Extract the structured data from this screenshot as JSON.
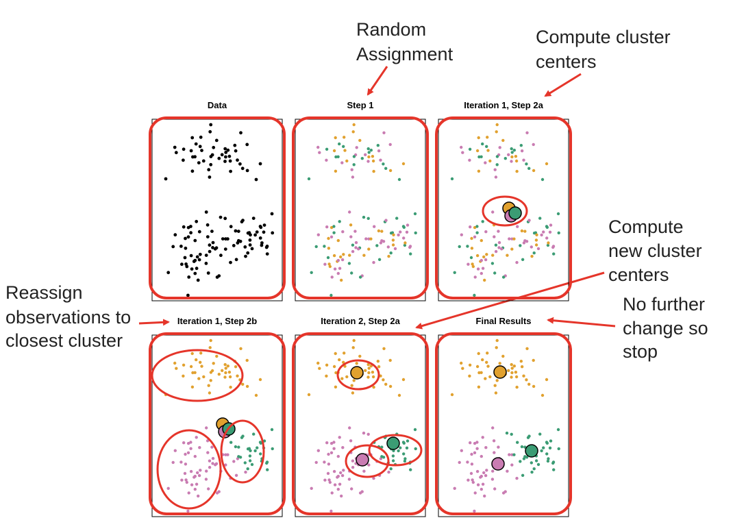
{
  "annotations": {
    "random_assignment": [
      "Random",
      "Assignment"
    ],
    "compute_centers": [
      "Compute cluster",
      "centers"
    ],
    "compute_new_centers": [
      "Compute",
      "new cluster",
      "centers"
    ],
    "reassign": [
      "Reassign",
      "observations to",
      "closest cluster"
    ],
    "no_change": [
      "No further",
      "change so",
      "stop"
    ]
  },
  "panels": [
    {
      "title": "Data",
      "mode": "data"
    },
    {
      "title": "Step 1",
      "mode": "random"
    },
    {
      "title": "Iteration 1, Step 2a",
      "mode": "random",
      "centers": "initial"
    },
    {
      "title": "Iteration 1, Step 2b",
      "mode": "assign0",
      "centers": "initial"
    },
    {
      "title": "Iteration 2, Step 2a",
      "mode": "assign0",
      "centers": "mid"
    },
    {
      "title": "Final Results",
      "mode": "final",
      "centers": "final"
    }
  ],
  "colors": {
    "orange": "#e1a12f",
    "green": "#3b9c74",
    "pink": "#c97cb2",
    "highlight": "#e5352a",
    "text": "#222222",
    "points": "#000000"
  }
}
